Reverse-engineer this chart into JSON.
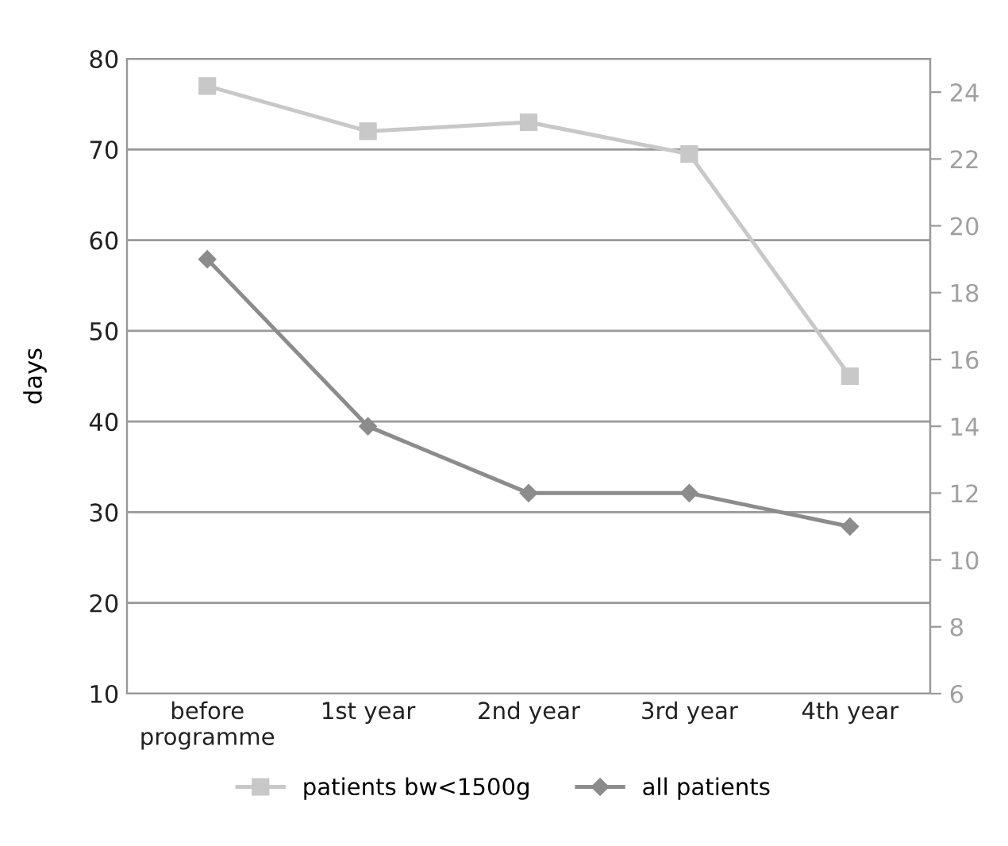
{
  "chart_data": {
    "type": "line",
    "ylabel": "days",
    "categories": [
      "before\nprogramme",
      "1st year",
      "2nd year",
      "3rd year",
      "4th year"
    ],
    "series": [
      {
        "name": "patients bw<1500g",
        "color": "#c8c8c8",
        "marker": "square",
        "values": [
          77,
          72,
          73,
          69.5,
          45
        ]
      },
      {
        "name": "all patients",
        "color": "#8c8c8c",
        "marker": "diamond",
        "axis": "y2",
        "values": [
          19,
          14,
          12,
          12,
          11
        ]
      }
    ],
    "ylim": [
      10,
      80
    ],
    "yticks": [
      10,
      20,
      30,
      40,
      50,
      60,
      70,
      80
    ],
    "y2lim": [
      6,
      25
    ],
    "y2ticks": [
      6,
      8,
      10,
      12,
      14,
      16,
      18,
      20,
      22,
      24
    ],
    "grid": "y",
    "legend": "bottom",
    "line_style": "solid"
  }
}
